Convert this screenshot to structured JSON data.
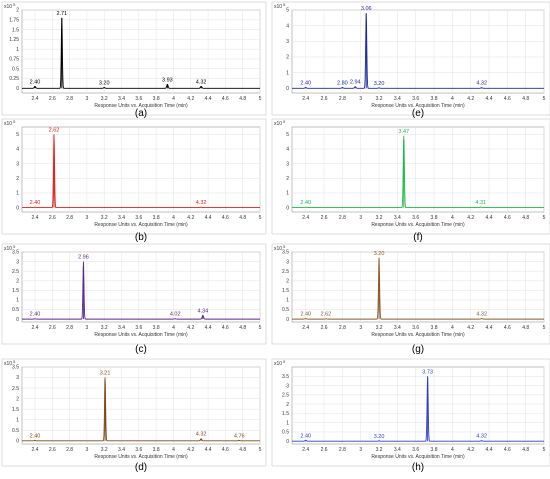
{
  "chart_data": [
    {
      "panel_label": "(a)",
      "type": "line",
      "color": "#000000",
      "x_axis_title": "Response Units vs. Acquisition Time (min)",
      "y_scale_label": "x10",
      "y_exponent": "5",
      "xlim": [
        2.25,
        5.0
      ],
      "ylim": [
        -0.12,
        2.0
      ],
      "x_ticks": [
        "2.4",
        "2.6",
        "2.8",
        "3",
        "3.2",
        "3.4",
        "3.6",
        "3.8",
        "4",
        "4.2",
        "4.4",
        "4.6",
        "4.8",
        "5"
      ],
      "y_ticks": [
        "0",
        "0.25",
        "0.5",
        "0.75",
        "1",
        "1.25",
        "1.5",
        "1.75",
        "2"
      ],
      "peaks": [
        {
          "label": "2.40",
          "rt": 2.4,
          "height": 0.05
        },
        {
          "label": "2.71",
          "rt": 2.71,
          "height": 1.8
        },
        {
          "label": "3.20",
          "rt": 3.2,
          "height": 0.02
        },
        {
          "label": "3.93",
          "rt": 3.93,
          "height": 0.1
        },
        {
          "label": "4.32",
          "rt": 4.32,
          "height": 0.05
        }
      ]
    },
    {
      "panel_label": "(e)",
      "type": "line",
      "color": "#1f2b9e",
      "x_axis_title": "Response Units vs. Acquisition Time (min)",
      "y_scale_label": "x10",
      "y_exponent": "5",
      "xlim": [
        2.25,
        5.0
      ],
      "ylim": [
        -0.3,
        5.0
      ],
      "x_ticks": [
        "2.4",
        "2.6",
        "2.8",
        "3",
        "3.2",
        "3.4",
        "3.6",
        "3.8",
        "4",
        "4.2",
        "4.4",
        "4.6",
        "4.8",
        "5"
      ],
      "y_ticks": [
        "0",
        "1",
        "2",
        "3",
        "4",
        "5"
      ],
      "peaks": [
        {
          "label": "2.40",
          "rt": 2.4,
          "height": 0.05
        },
        {
          "label": "2.80",
          "rt": 2.8,
          "height": 0.05
        },
        {
          "label": "2.94",
          "rt": 2.94,
          "height": 0.1
        },
        {
          "label": "3.06",
          "rt": 3.06,
          "height": 4.8
        },
        {
          "label": "3.20",
          "rt": 3.2,
          "height": 0.03
        },
        {
          "label": "4.32",
          "rt": 4.32,
          "height": 0.04
        }
      ]
    },
    {
      "panel_label": "(b)",
      "type": "line",
      "color": "#e02020",
      "x_axis_title": "Response Units vs. Acquisition Time (min)",
      "y_scale_label": "x10",
      "y_exponent": "5",
      "xlim": [
        2.25,
        5.0
      ],
      "ylim": [
        -0.3,
        5.5
      ],
      "x_ticks": [
        "2.4",
        "2.6",
        "2.8",
        "3",
        "3.2",
        "3.4",
        "3.6",
        "3.8",
        "4",
        "4.2",
        "4.4",
        "4.6",
        "4.8",
        "5"
      ],
      "y_ticks": [
        "0",
        "1",
        "2",
        "3",
        "4",
        "5"
      ],
      "peaks": [
        {
          "label": "2.40",
          "rt": 2.4,
          "height": 0.03
        },
        {
          "label": "2.62",
          "rt": 2.62,
          "height": 5.0
        },
        {
          "label": "4.32",
          "rt": 4.32,
          "height": 0.03
        }
      ]
    },
    {
      "panel_label": "(f)",
      "type": "line",
      "color": "#1fb84a",
      "x_axis_title": "Response Units vs. Acquisition Time (min)",
      "y_scale_label": "x10",
      "y_exponent": "5",
      "xlim": [
        2.25,
        5.0
      ],
      "ylim": [
        -0.3,
        5.5
      ],
      "x_ticks": [
        "2.4",
        "2.6",
        "2.8",
        "3",
        "3.2",
        "3.4",
        "3.6",
        "3.8",
        "4",
        "4.2",
        "4.4",
        "4.6",
        "4.8",
        "5"
      ],
      "y_ticks": [
        "0",
        "1",
        "2",
        "3",
        "4",
        "5"
      ],
      "peaks": [
        {
          "label": "2.40",
          "rt": 2.4,
          "height": 0.03
        },
        {
          "label": "3.47",
          "rt": 3.47,
          "height": 4.9
        },
        {
          "label": "4.31",
          "rt": 4.31,
          "height": 0.04
        }
      ]
    },
    {
      "panel_label": "(c)",
      "type": "line",
      "color": "#5b2a86",
      "x_axis_title": "Response Units vs. Acquisition Time (min)",
      "y_scale_label": "x10",
      "y_exponent": "5",
      "xlim": [
        2.25,
        5.0
      ],
      "ylim": [
        -0.15,
        3.5
      ],
      "x_ticks": [
        "2.4",
        "2.6",
        "2.8",
        "3",
        "3.2",
        "3.4",
        "3.6",
        "3.8",
        "4",
        "4.2",
        "4.4",
        "4.6",
        "4.8",
        "5"
      ],
      "y_ticks": [
        "0",
        "0.5",
        "1",
        "1.5",
        "2",
        "2.5",
        "3",
        "3.5"
      ],
      "peaks": [
        {
          "label": "2.40",
          "rt": 2.4,
          "height": 0.02
        },
        {
          "label": "2.96",
          "rt": 2.96,
          "height": 3.0
        },
        {
          "label": "4.02",
          "rt": 4.02,
          "height": 0.02
        },
        {
          "label": "4.34",
          "rt": 4.34,
          "height": 0.2
        }
      ]
    },
    {
      "panel_label": "(g)",
      "type": "line",
      "color": "#8a5a2b",
      "x_axis_title": "Response Units vs. Acquisition Time (min)",
      "y_scale_label": "x10",
      "y_exponent": "5",
      "xlim": [
        2.25,
        5.0
      ],
      "ylim": [
        -0.15,
        3.5
      ],
      "x_ticks": [
        "2.4",
        "2.6",
        "2.8",
        "3",
        "3.2",
        "3.4",
        "3.6",
        "3.8",
        "4",
        "4.2",
        "4.4",
        "4.6",
        "4.8",
        "5"
      ],
      "y_ticks": [
        "0",
        "0.5",
        "1",
        "1.5",
        "2",
        "2.5",
        "3",
        "3.5"
      ],
      "peaks": [
        {
          "label": "2.40",
          "rt": 2.4,
          "height": 0.03
        },
        {
          "label": "2.62",
          "rt": 2.62,
          "height": 0.02
        },
        {
          "label": "3.20",
          "rt": 3.2,
          "height": 3.2
        },
        {
          "label": "4.32",
          "rt": 4.32,
          "height": 0.03
        }
      ]
    },
    {
      "panel_label": "(d)",
      "type": "line",
      "color": "#7a4a1a",
      "x_axis_title": "Response Units vs. Acquisition Time (min)",
      "y_scale_label": "x10",
      "y_exponent": "5",
      "xlim": [
        2.25,
        5.0
      ],
      "ylim": [
        -0.15,
        3.5
      ],
      "x_ticks": [
        "2.4",
        "2.6",
        "2.8",
        "3",
        "3.2",
        "3.4",
        "3.6",
        "3.8",
        "4",
        "4.2",
        "4.4",
        "4.6",
        "4.8",
        "5"
      ],
      "y_ticks": [
        "0",
        "0.5",
        "1",
        "1.5",
        "2",
        "2.5",
        "3",
        "3.5"
      ],
      "peaks": [
        {
          "label": "2.40",
          "rt": 2.4,
          "height": 0.02
        },
        {
          "label": "3.21",
          "rt": 3.21,
          "height": 3.0
        },
        {
          "label": "4.32",
          "rt": 4.32,
          "height": 0.1
        },
        {
          "label": "4.76",
          "rt": 4.76,
          "height": 0.02
        }
      ]
    },
    {
      "panel_label": "(h)",
      "type": "line",
      "color": "#2a3fc4",
      "x_axis_title": "Response Units vs. Acquisition Time (min)",
      "y_scale_label": "x10",
      "y_exponent": "5",
      "xlim": [
        2.25,
        5.0
      ],
      "ylim": [
        -0.15,
        4.0
      ],
      "x_ticks": [
        "2.4",
        "2.6",
        "2.8",
        "3",
        "3.2",
        "3.4",
        "3.6",
        "3.8",
        "4",
        "4.2",
        "4.4",
        "4.6",
        "4.8",
        "5"
      ],
      "y_ticks": [
        "0",
        "0.5",
        "1",
        "1.5",
        "2",
        "2.5",
        "3",
        "3.5"
      ],
      "peaks": [
        {
          "label": "2.40",
          "rt": 2.4,
          "height": 0.05
        },
        {
          "label": "3.20",
          "rt": 3.2,
          "height": 0.02
        },
        {
          "label": "3.73",
          "rt": 3.73,
          "height": 3.5
        },
        {
          "label": "4.32",
          "rt": 4.32,
          "height": 0.03
        }
      ]
    }
  ]
}
